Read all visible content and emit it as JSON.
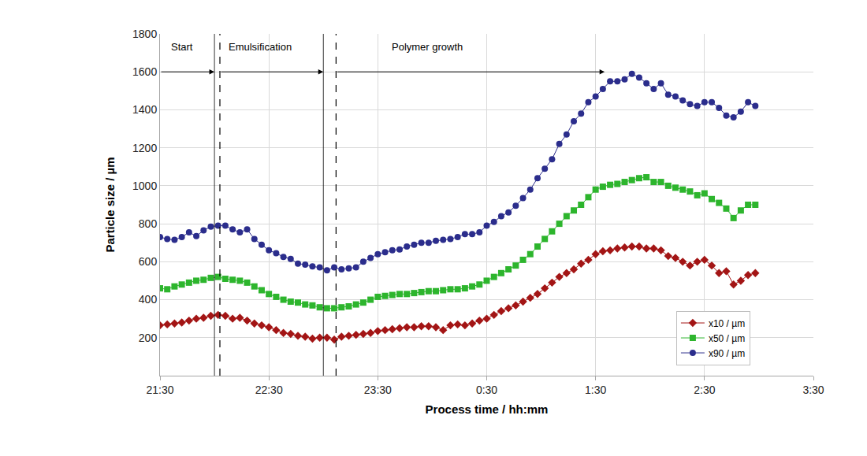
{
  "chart_data": {
    "type": "line",
    "x_label": "Process time / hh:mm",
    "y_label": "Particle size / µm",
    "x": [
      0,
      4,
      8,
      12,
      16,
      20,
      24,
      28,
      32,
      36,
      40,
      44,
      48,
      52,
      56,
      60,
      64,
      68,
      72,
      76,
      80,
      84,
      88,
      92,
      96,
      100,
      104,
      108,
      112,
      116,
      120,
      124,
      128,
      132,
      136,
      140,
      144,
      148,
      152,
      156,
      160,
      164,
      168,
      172,
      176,
      180,
      184,
      188,
      192,
      196,
      200,
      204,
      208,
      212,
      216,
      220,
      224,
      228,
      232,
      236,
      240,
      244,
      248,
      252,
      256,
      260,
      264,
      268,
      272,
      276,
      280,
      284,
      288,
      292,
      296,
      300,
      304,
      308,
      312,
      316,
      320,
      324,
      328
    ],
    "series": [
      {
        "name": "x10 / µm",
        "color": "#a31515",
        "marker": "diamond",
        "values": [
          265,
          270,
          275,
          280,
          290,
          300,
          305,
          315,
          320,
          315,
          300,
          305,
          290,
          275,
          265,
          255,
          240,
          225,
          220,
          210,
          205,
          195,
          200,
          200,
          190,
          205,
          210,
          215,
          220,
          225,
          235,
          240,
          245,
          250,
          255,
          255,
          260,
          260,
          255,
          240,
          265,
          270,
          265,
          275,
          290,
          300,
          320,
          340,
          355,
          370,
          390,
          410,
          430,
          460,
          490,
          520,
          540,
          560,
          590,
          610,
          640,
          655,
          660,
          670,
          675,
          680,
          680,
          670,
          670,
          660,
          630,
          620,
          600,
          580,
          600,
          610,
          580,
          540,
          550,
          480,
          500,
          530,
          540
        ]
      },
      {
        "name": "x50 / µm",
        "color": "#2db52d",
        "marker": "square",
        "values": [
          460,
          455,
          470,
          480,
          490,
          500,
          505,
          515,
          520,
          510,
          505,
          500,
          490,
          470,
          450,
          430,
          415,
          400,
          390,
          385,
          375,
          370,
          360,
          355,
          355,
          360,
          365,
          375,
          385,
          400,
          415,
          420,
          425,
          430,
          430,
          435,
          440,
          445,
          445,
          450,
          455,
          455,
          460,
          470,
          480,
          500,
          520,
          540,
          560,
          580,
          610,
          640,
          680,
          720,
          760,
          800,
          840,
          870,
          900,
          940,
          980,
          995,
          1005,
          1010,
          1020,
          1030,
          1040,
          1045,
          1020,
          1020,
          1000,
          990,
          980,
          970,
          950,
          960,
          930,
          910,
          880,
          830,
          870,
          900,
          900
        ]
      },
      {
        "name": "x90 / µm",
        "color": "#2b2d8c",
        "marker": "circle",
        "values": [
          730,
          720,
          715,
          730,
          755,
          735,
          765,
          785,
          790,
          790,
          770,
          755,
          770,
          720,
          690,
          660,
          645,
          625,
          615,
          590,
          585,
          575,
          570,
          555,
          570,
          560,
          565,
          570,
          600,
          620,
          640,
          650,
          660,
          665,
          680,
          690,
          700,
          700,
          710,
          715,
          720,
          730,
          745,
          745,
          755,
          790,
          810,
          840,
          860,
          895,
          935,
          980,
          1040,
          1090,
          1140,
          1220,
          1270,
          1340,
          1380,
          1440,
          1470,
          1510,
          1550,
          1550,
          1560,
          1590,
          1570,
          1540,
          1510,
          1540,
          1480,
          1470,
          1450,
          1430,
          1420,
          1440,
          1440,
          1410,
          1370,
          1360,
          1390,
          1440,
          1420
        ]
      }
    ],
    "xlim": [
      0,
      360
    ],
    "xticks": [
      {
        "value": 0,
        "label": "21:30"
      },
      {
        "value": 60,
        "label": "22:30"
      },
      {
        "value": 120,
        "label": "23:30"
      },
      {
        "value": 180,
        "label": "0:30"
      },
      {
        "value": 240,
        "label": "1:30"
      },
      {
        "value": 300,
        "label": "2:30"
      },
      {
        "value": 360,
        "label": "3:30"
      }
    ],
    "ylim": [
      0,
      1800
    ],
    "yticks": [
      200,
      400,
      600,
      800,
      1000,
      1200,
      1400,
      1600,
      1800
    ],
    "grid": true,
    "legend": "lower right",
    "annotations": [
      {
        "text": "Start",
        "x": 5,
        "y": 1733
      },
      {
        "text": "Emulsification",
        "x": 37,
        "y": 1733
      },
      {
        "text": "Polymer growth",
        "x": 127,
        "y": 1733
      }
    ],
    "arrows": [
      {
        "from": 0,
        "to": 30,
        "y": 1600
      },
      {
        "from": 33,
        "to": 90,
        "y": 1600
      },
      {
        "from": 97,
        "to": 245,
        "y": 1600
      }
    ],
    "vlines": [
      {
        "x": 30,
        "line_style": "solid"
      },
      {
        "x": 33,
        "line_style": "dash"
      },
      {
        "x": 90,
        "line_style": "solid"
      },
      {
        "x": 97,
        "line_style": "dash"
      }
    ]
  }
}
